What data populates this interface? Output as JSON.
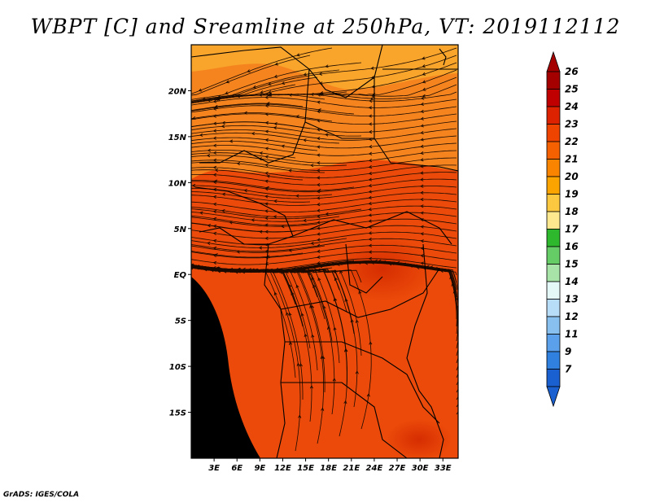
{
  "title": "WBPT [C] and Sreamline at 250hPa, VT: 2019112112",
  "credit": "GrADS: IGES/COLA",
  "map": {
    "lat_labels": [
      "20N",
      "15N",
      "10N",
      "5N",
      "EQ",
      "5S",
      "10S",
      "15S"
    ],
    "lat_values": [
      20,
      15,
      10,
      5,
      0,
      -5,
      -10,
      -15
    ],
    "lon_labels": [
      "3E",
      "6E",
      "9E",
      "12E",
      "15E",
      "18E",
      "21E",
      "24E",
      "27E",
      "30E",
      "33E"
    ],
    "lon_values": [
      3,
      6,
      9,
      12,
      15,
      18,
      21,
      24,
      27,
      30,
      33
    ],
    "lon_range": [
      0,
      35
    ],
    "lat_range": [
      -20,
      25
    ]
  },
  "colorbar": {
    "labels": [
      "26",
      "25",
      "24",
      "23",
      "22",
      "21",
      "20",
      "19",
      "18",
      "17",
      "16",
      "15",
      "14",
      "13",
      "12",
      "11",
      "9",
      "7"
    ],
    "colors": [
      "#a50000",
      "#c00000",
      "#dc2200",
      "#ef4400",
      "#f56000",
      "#f88400",
      "#fba400",
      "#fcc840",
      "#fde890",
      "#2eb82e",
      "#66cc66",
      "#a8e4a8",
      "#e4f8f8",
      "#b8ddf8",
      "#88c0f0",
      "#5aa0ea",
      "#3080e0",
      "#1a60d0"
    ]
  },
  "colors": {
    "map_base": "#eb4a0a",
    "map_north": "#f5841f",
    "map_far_north": "#f9a42a",
    "streamline": "#1a0a00",
    "border": "#000000"
  }
}
